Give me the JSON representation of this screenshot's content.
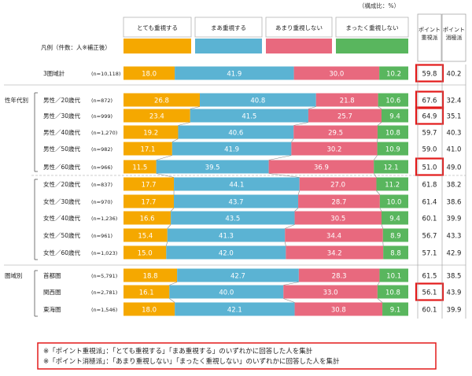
{
  "chart_data": {
    "type": "bar",
    "subtype": "stacked-100-horizontal",
    "unit_note": "（構成比：%）",
    "legend_title": "凡例（件数：人※補正後）",
    "series": [
      {
        "name": "とても重視する",
        "color": "#F5A800"
      },
      {
        "name": "まあ重視する",
        "color": "#5BB3D3"
      },
      {
        "name": "あまり重視しない",
        "color": "#E8697E"
      },
      {
        "name": "まったく重視しない",
        "color": "#59B65E"
      }
    ],
    "summary_headers": [
      "ポイント重視派",
      "ポイント消極派"
    ],
    "groups": [
      {
        "label": "",
        "rows": [
          {
            "label": "3圏域計",
            "n": "(n=10,118)",
            "values": [
              18.0,
              41.9,
              30.0,
              10.2
            ],
            "pos": "59.8",
            "neg": "40.2",
            "highlight": true
          }
        ]
      },
      {
        "label": "性年代別",
        "rows": [
          {
            "label": "男性／20歳代",
            "n": "(n=872)",
            "values": [
              26.8,
              40.8,
              21.8,
              10.6
            ],
            "pos": "67.6",
            "neg": "32.4",
            "highlight": true
          },
          {
            "label": "男性／30歳代",
            "n": "(n=999)",
            "values": [
              23.4,
              41.5,
              25.7,
              9.4
            ],
            "pos": "64.9",
            "neg": "35.1",
            "highlight": true
          },
          {
            "label": "男性／40歳代",
            "n": "(n=1,270)",
            "values": [
              19.2,
              40.6,
              29.5,
              10.8
            ],
            "pos": "59.7",
            "neg": "40.3",
            "highlight": false
          },
          {
            "label": "男性／50歳代",
            "n": "(n=982)",
            "values": [
              17.1,
              41.9,
              30.2,
              10.9
            ],
            "pos": "59.0",
            "neg": "41.0",
            "highlight": false
          },
          {
            "label": "男性／60歳代",
            "n": "(n=966)",
            "values": [
              11.5,
              39.5,
              36.9,
              12.1
            ],
            "pos": "51.0",
            "neg": "49.0",
            "highlight": true
          },
          {
            "label": "女性／20歳代",
            "n": "(n=837)",
            "values": [
              17.7,
              44.1,
              27.0,
              11.2
            ],
            "pos": "61.8",
            "neg": "38.2",
            "highlight": false
          },
          {
            "label": "女性／30歳代",
            "n": "(n=970)",
            "values": [
              17.7,
              43.7,
              28.7,
              10.0
            ],
            "pos": "61.4",
            "neg": "38.6",
            "highlight": false
          },
          {
            "label": "女性／40歳代",
            "n": "(n=1,236)",
            "values": [
              16.6,
              43.5,
              30.5,
              9.4
            ],
            "pos": "60.1",
            "neg": "39.9",
            "highlight": false
          },
          {
            "label": "女性／50歳代",
            "n": "(n=961)",
            "values": [
              15.4,
              41.3,
              34.4,
              8.9
            ],
            "pos": "56.7",
            "neg": "43.3",
            "highlight": false
          },
          {
            "label": "女性／60歳代",
            "n": "(n=1,023)",
            "values": [
              15.0,
              42.0,
              34.2,
              8.8
            ],
            "pos": "57.1",
            "neg": "42.9",
            "highlight": false
          }
        ]
      },
      {
        "label": "圏域別",
        "rows": [
          {
            "label": "首都圏",
            "n": "(n=5,791)",
            "values": [
              18.8,
              42.7,
              28.3,
              10.1
            ],
            "pos": "61.5",
            "neg": "38.5",
            "highlight": false
          },
          {
            "label": "関西圏",
            "n": "(n=2,781)",
            "values": [
              16.1,
              40.0,
              33.0,
              10.8
            ],
            "pos": "56.1",
            "neg": "43.9",
            "highlight": true
          },
          {
            "label": "東海圏",
            "n": "(n=1,546)",
            "values": [
              18.0,
              42.1,
              30.8,
              9.1
            ],
            "pos": "60.1",
            "neg": "39.9",
            "highlight": false
          }
        ]
      }
    ],
    "notes": [
      "※「ポイント重視派」：「とても重視する」「まあ重視する」のいずれかに回答した人を集計",
      "※「ポイント消極派」：「あまり重視しない」「まったく重視しない」のいずれかに回答した人を集計"
    ]
  }
}
